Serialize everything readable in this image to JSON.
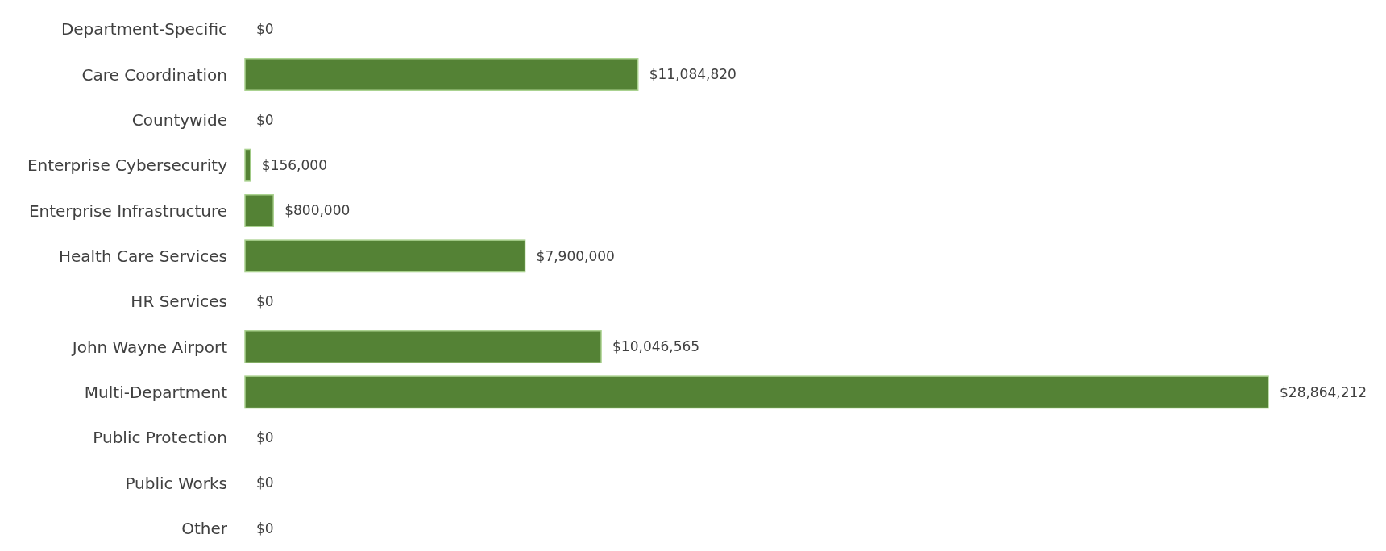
{
  "chart_data": {
    "type": "bar",
    "orientation": "horizontal",
    "categories": [
      "Department-Specific",
      "Care Coordination",
      "Countywide",
      "Enterprise Cybersecurity",
      "Enterprise Infrastructure",
      "Health Care Services",
      "HR Services",
      "John Wayne Airport",
      "Multi-Department",
      "Public Protection",
      "Public Works",
      "Other"
    ],
    "values": [
      0,
      11084820,
      0,
      156000,
      800000,
      7900000,
      0,
      10046565,
      28864212,
      0,
      0,
      0
    ],
    "value_labels": [
      "$0",
      "$11,084,820",
      "$0",
      "$156,000",
      "$800,000",
      "$7,900,000",
      "$0",
      "$10,046,565",
      "$28,864,212",
      "$0",
      "$0",
      "$0"
    ],
    "color": "#548235"
  }
}
